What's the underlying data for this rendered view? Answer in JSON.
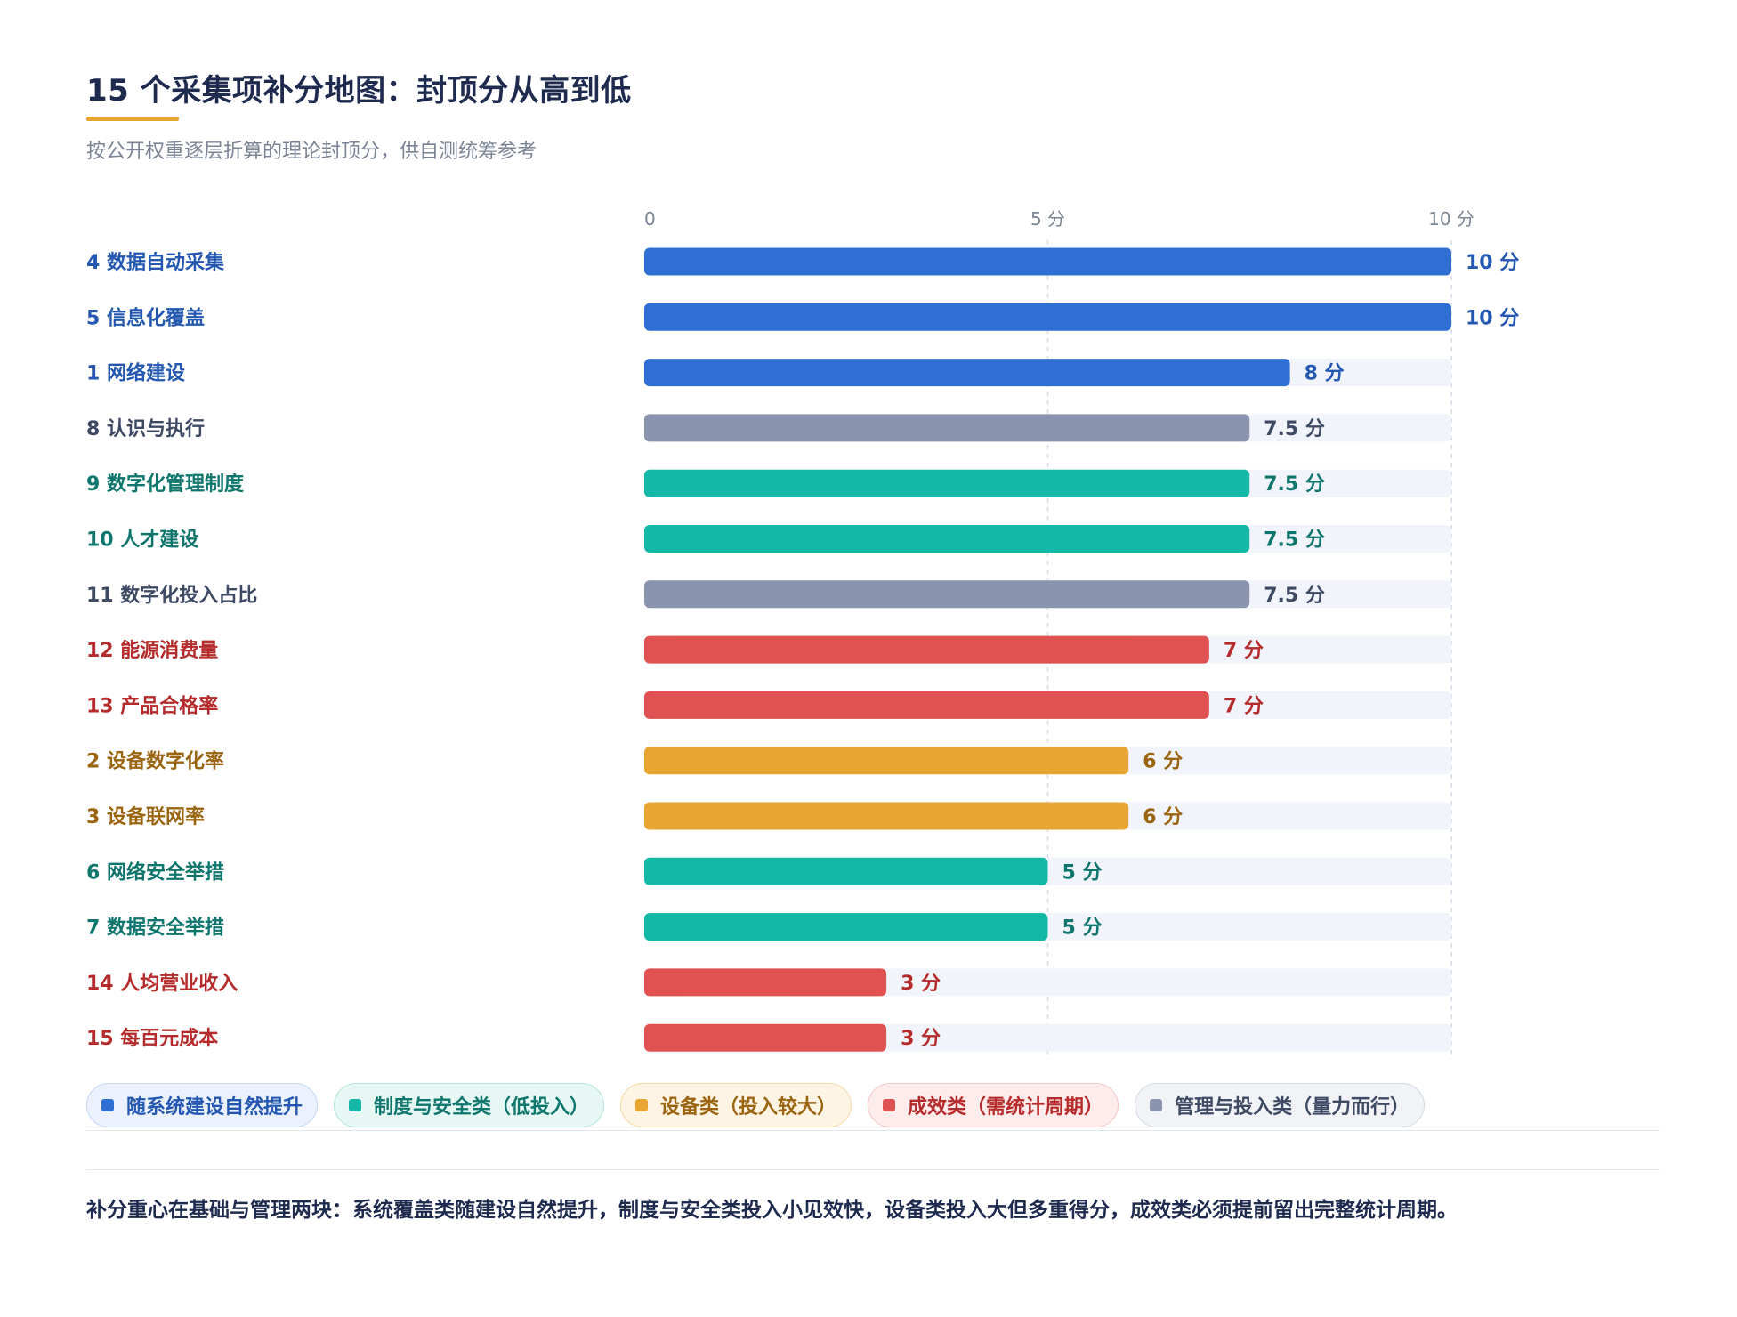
{
  "header": {
    "title": "15 个采集项补分地图：封顶分从高到低",
    "subtitle": "按公开权重逐层折算的理论封顶分，供自测统筹参考"
  },
  "colors": {
    "blue": "#2f6fd3",
    "teal": "#14b8a6",
    "orange": "#e8a531",
    "red": "#e05252",
    "gray": "#8a94ae",
    "track": "#f1f4fb",
    "title": "#1e2b4f",
    "accent": "#e3a62f"
  },
  "chart_data": {
    "type": "bar",
    "orientation": "horizontal",
    "xlim": [
      0,
      10
    ],
    "x_ticks": [
      "0",
      "5 分",
      "10 分"
    ],
    "grid": true,
    "categories": [
      "4 数据自动采集",
      "5 信息化覆盖",
      "1 网络建设",
      "8 认识与执行",
      "9 数字化管理制度",
      "10 人才建设",
      "11 数字化投入占比",
      "12 能源消费量",
      "13 产品合格率",
      "2 设备数字化率",
      "3 设备联网率",
      "6 网络安全举措",
      "7 数据安全举措",
      "14 人均营业收入",
      "15 每百元成本"
    ],
    "values": [
      10,
      10,
      8,
      7.5,
      7.5,
      7.5,
      7.5,
      7,
      7,
      6,
      6,
      5,
      5,
      3,
      3
    ],
    "value_labels": [
      "10 分",
      "10 分",
      "8 分",
      "7.5 分",
      "7.5 分",
      "7.5 分",
      "7.5 分",
      "7 分",
      "7 分",
      "6 分",
      "6 分",
      "5 分",
      "5 分",
      "3 分",
      "3 分"
    ],
    "groups": [
      "system",
      "system",
      "system",
      "manage",
      "policy",
      "policy",
      "manage",
      "result",
      "result",
      "equip",
      "equip",
      "policy",
      "policy",
      "result",
      "result"
    ],
    "legend_position": "bottom-left"
  },
  "legend": [
    {
      "key": "system",
      "label": "随系统建设自然提升",
      "color": "#2f6fd3",
      "text": "#2457b0",
      "bg": "#ebf2fd",
      "border": "#c3d6f5"
    },
    {
      "key": "policy",
      "label": "制度与安全类（低投入）",
      "color": "#14b8a6",
      "text": "#0f766e",
      "bg": "#e7f7f3",
      "border": "#b4e5db"
    },
    {
      "key": "equip",
      "label": "设备类（投入较大）",
      "color": "#e8a531",
      "text": "#9a6411",
      "bg": "#fdf4e3",
      "border": "#f3d9a4"
    },
    {
      "key": "result",
      "label": "成效类（需统计周期）",
      "color": "#e05252",
      "text": "#b52b2b",
      "bg": "#fdeceb",
      "border": "#f5c6c3"
    },
    {
      "key": "manage",
      "label": "管理与投入类（量力而行）",
      "color": "#8a94ae",
      "text": "#3e4a63",
      "bg": "#f1f3f7",
      "border": "#d3d8e2"
    }
  ],
  "footer_note": "补分重心在基础与管理两块：系统覆盖类随建设自然提升，制度与安全类投入小见效快，设备类投入大但多重得分，成效类必须提前留出完整统计周期。"
}
